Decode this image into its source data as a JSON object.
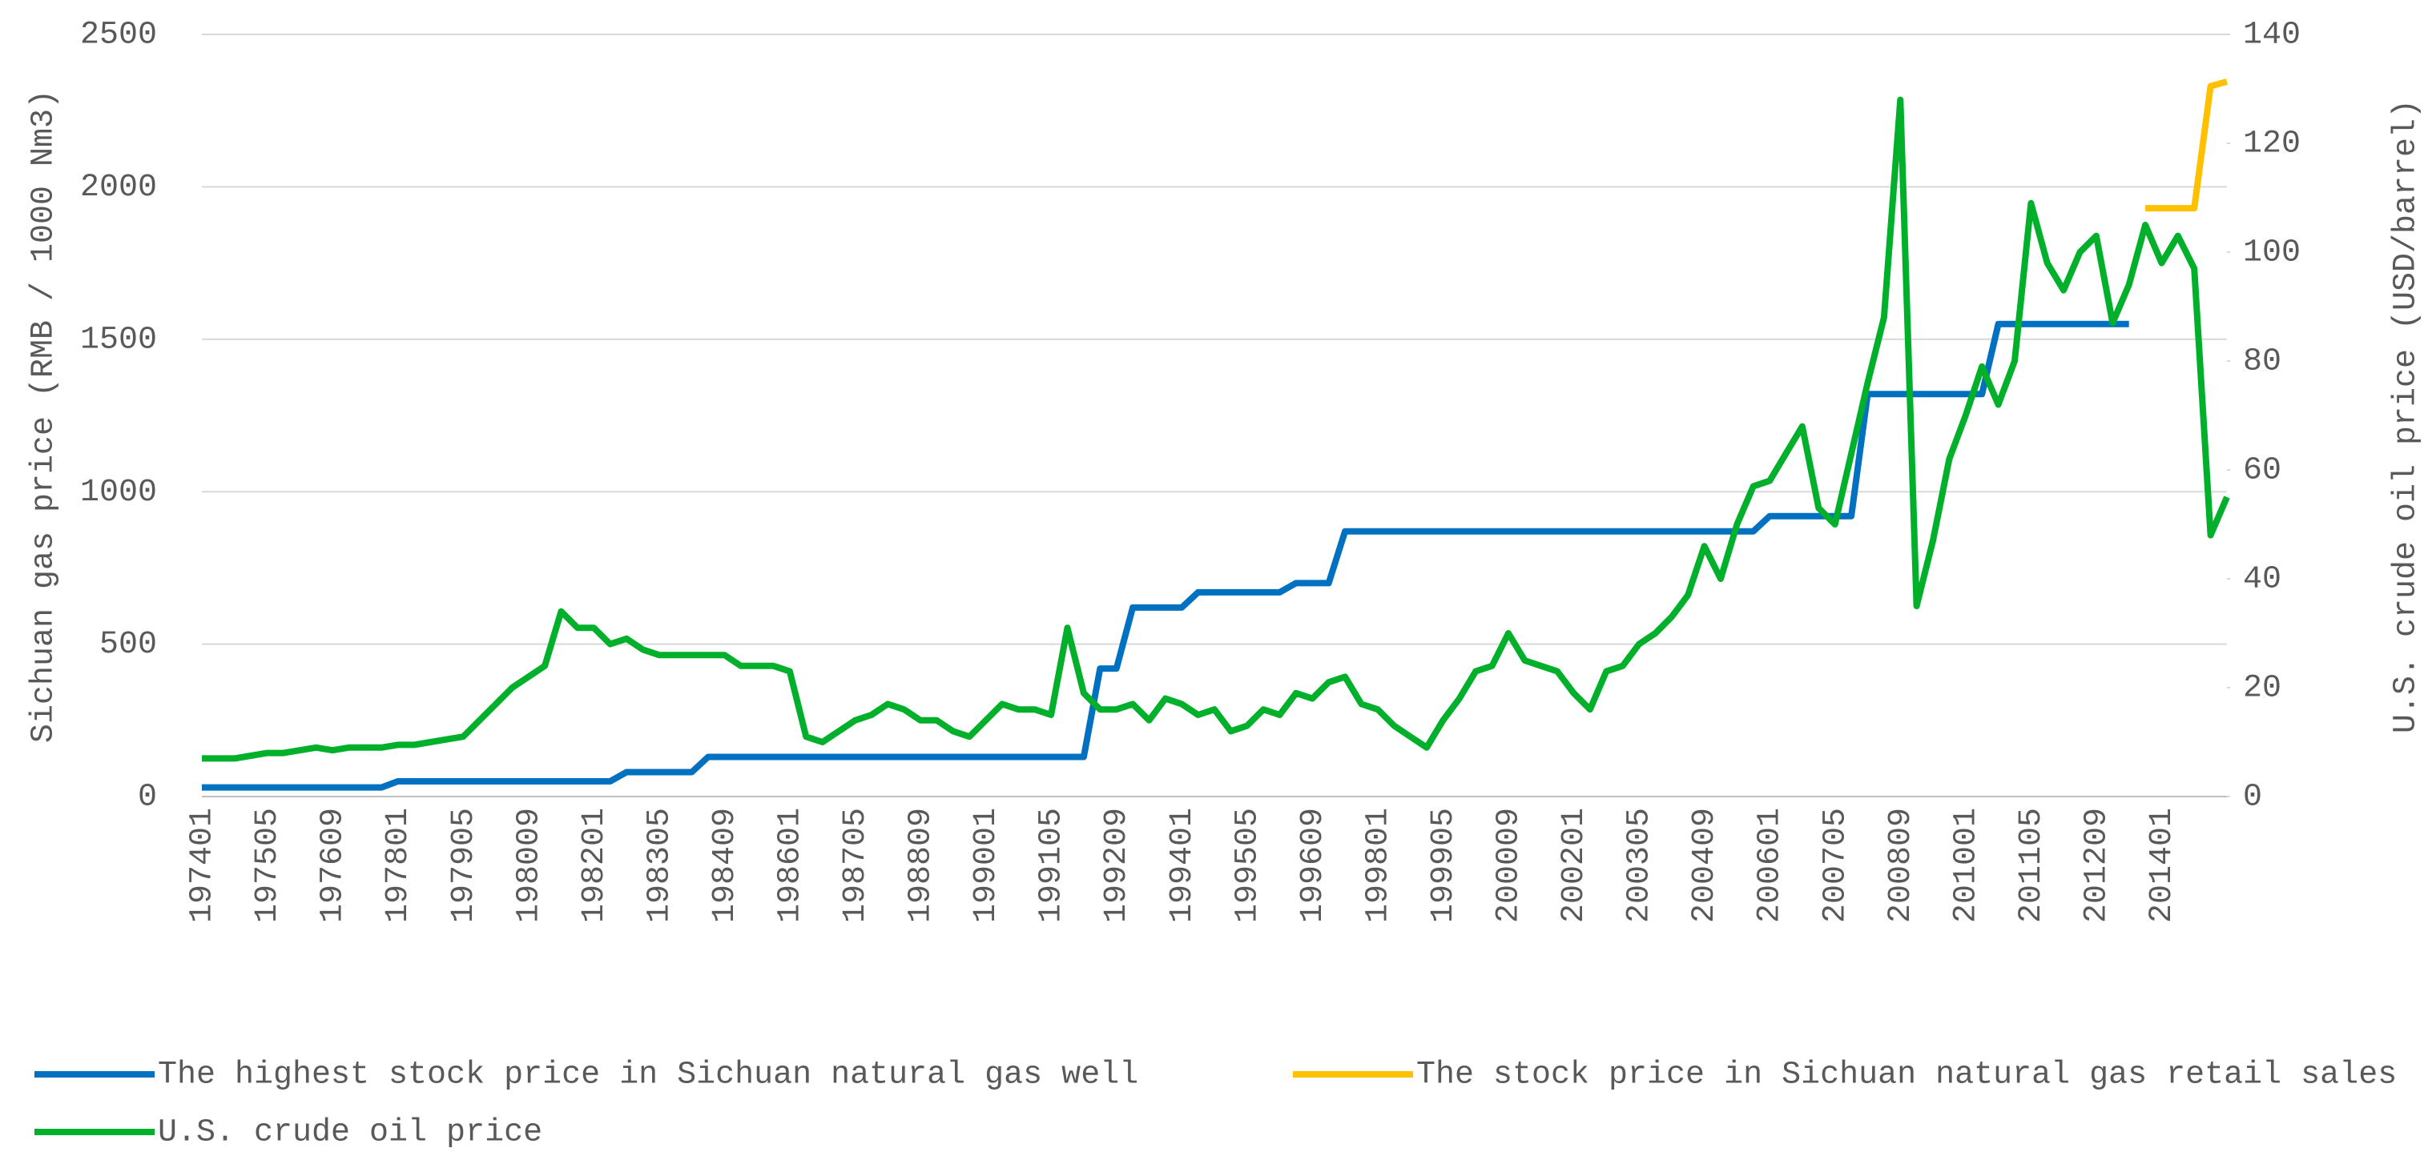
{
  "chart_data": {
    "type": "line",
    "y_label": "Sichuan gas price (RMB / 1000 Nm3)",
    "y2_label": "U.S.  crude oil price (USD/barrel)",
    "categories": [
      "197401",
      null,
      null,
      null,
      "197505",
      null,
      null,
      null,
      "197609",
      null,
      null,
      null,
      "197801",
      null,
      null,
      null,
      "197905",
      null,
      null,
      null,
      "198009",
      null,
      null,
      null,
      "198201",
      null,
      null,
      null,
      "198305",
      null,
      null,
      null,
      "198409",
      null,
      null,
      null,
      "198601",
      null,
      null,
      null,
      "198705",
      null,
      null,
      null,
      "198809",
      null,
      null,
      null,
      "199001",
      null,
      null,
      null,
      "199105",
      null,
      null,
      null,
      "199209",
      null,
      null,
      null,
      "199401",
      null,
      null,
      null,
      "199505",
      null,
      null,
      null,
      "199609",
      null,
      null,
      null,
      "199801",
      null,
      null,
      null,
      "199905",
      null,
      null,
      null,
      "200009",
      null,
      null,
      null,
      "200201",
      null,
      null,
      null,
      "200305",
      null,
      null,
      null,
      "200409",
      null,
      null,
      null,
      "200601",
      null,
      null,
      null,
      "200705",
      null,
      null,
      null,
      "200809",
      null,
      null,
      null,
      "201001",
      null,
      null,
      null,
      "201105",
      null,
      null,
      null,
      "201209",
      null,
      null,
      null,
      "201401",
      null,
      null,
      null,
      null
    ],
    "series": [
      {
        "name": "The highest stock price in Sichuan natural gas well",
        "color": "#0070c0",
        "axis": "y",
        "values": [
          30,
          30,
          30,
          30,
          30,
          30,
          30,
          30,
          30,
          30,
          30,
          30,
          50,
          50,
          50,
          50,
          50,
          50,
          50,
          50,
          50,
          50,
          50,
          50,
          50,
          50,
          80,
          80,
          80,
          80,
          80,
          130,
          130,
          130,
          130,
          130,
          130,
          130,
          130,
          130,
          130,
          130,
          130,
          130,
          130,
          130,
          130,
          130,
          130,
          130,
          130,
          130,
          130,
          130,
          130,
          420,
          420,
          620,
          620,
          620,
          620,
          670,
          670,
          670,
          670,
          670,
          670,
          700,
          700,
          700,
          870,
          870,
          870,
          870,
          870,
          870,
          870,
          870,
          870,
          870,
          870,
          870,
          870,
          870,
          870,
          870,
          870,
          870,
          870,
          870,
          870,
          870,
          870,
          870,
          870,
          870,
          920,
          920,
          920,
          920,
          920,
          920,
          1320,
          1320,
          1320,
          1320,
          1320,
          1320,
          1320,
          1320,
          1550,
          1550,
          1550,
          1550,
          1550,
          1550,
          1550,
          1550,
          1550,
          null,
          null,
          null,
          null,
          null,
          null
        ]
      },
      {
        "name": "The stock price in Sichuan natural gas retail sales",
        "color": "#ffc000",
        "axis": "y",
        "values": [
          null,
          null,
          null,
          null,
          null,
          null,
          null,
          null,
          null,
          null,
          null,
          null,
          null,
          null,
          null,
          null,
          null,
          null,
          null,
          null,
          null,
          null,
          null,
          null,
          null,
          null,
          null,
          null,
          null,
          null,
          null,
          null,
          null,
          null,
          null,
          null,
          null,
          null,
          null,
          null,
          null,
          null,
          null,
          null,
          null,
          null,
          null,
          null,
          null,
          null,
          null,
          null,
          null,
          null,
          null,
          null,
          null,
          null,
          null,
          null,
          null,
          null,
          null,
          null,
          null,
          null,
          null,
          null,
          null,
          null,
          null,
          null,
          null,
          null,
          null,
          null,
          null,
          null,
          null,
          null,
          null,
          null,
          null,
          null,
          null,
          null,
          null,
          null,
          null,
          null,
          null,
          null,
          null,
          null,
          null,
          null,
          null,
          null,
          null,
          null,
          null,
          null,
          null,
          null,
          null,
          null,
          null,
          null,
          null,
          null,
          null,
          null,
          null,
          null,
          null,
          null,
          null,
          null,
          null,
          1930,
          1930,
          1930,
          1930,
          2330,
          2345
        ]
      },
      {
        "name": "U.S. crude oil price",
        "color": "#00b02a",
        "axis": "y2",
        "values": [
          7,
          7,
          7,
          7.5,
          8,
          8,
          8.5,
          9,
          8.5,
          9,
          9,
          9,
          9.5,
          9.5,
          10,
          10.5,
          11,
          14,
          17,
          20,
          22,
          24,
          34,
          31,
          31,
          28,
          29,
          27,
          26,
          26,
          26,
          26,
          26,
          24,
          24,
          24,
          23,
          11,
          10,
          12,
          14,
          15,
          17,
          16,
          14,
          14,
          12,
          11,
          14,
          17,
          16,
          16,
          15,
          31,
          19,
          16,
          16,
          17,
          14,
          18,
          17,
          15,
          16,
          12,
          13,
          16,
          15,
          19,
          18,
          21,
          22,
          17,
          16,
          13,
          11,
          9,
          14,
          18,
          23,
          24,
          30,
          25,
          24,
          23,
          19,
          16,
          23,
          24,
          28,
          30,
          33,
          37,
          46,
          40,
          50,
          57,
          58,
          63,
          68,
          53,
          50,
          63,
          76,
          88,
          128,
          35,
          47,
          62,
          70,
          79,
          72,
          80,
          109,
          98,
          93,
          100,
          103,
          87,
          94,
          105,
          98,
          103,
          97,
          48,
          55
        ]
      }
    ],
    "ylim": [
      0,
      2500
    ],
    "yticks": [
      0,
      500,
      1000,
      1500,
      2000,
      2500
    ],
    "y2lim": [
      0,
      140
    ],
    "y2ticks": [
      0,
      20,
      40,
      60,
      80,
      100,
      120,
      140
    ],
    "grid": true
  }
}
